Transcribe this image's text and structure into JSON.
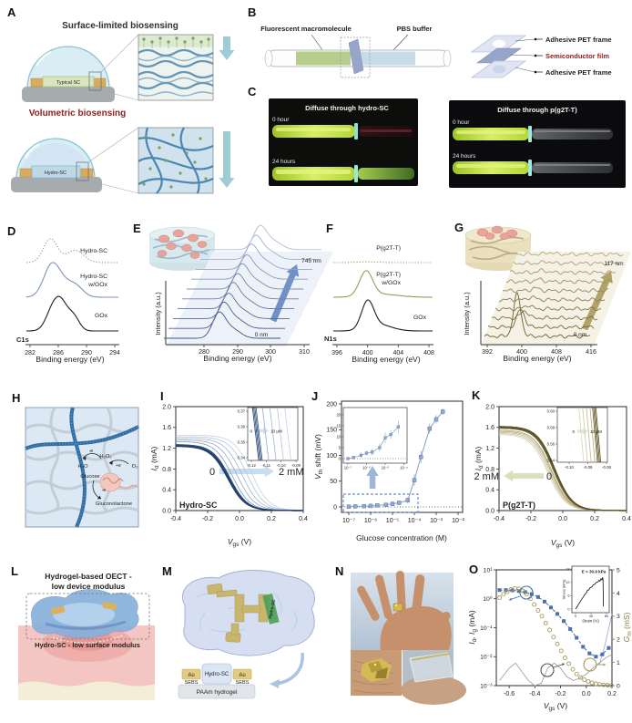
{
  "panels": {
    "A": {
      "label": "A",
      "title_top": "Surface-limited biosensing",
      "title_bottom": "Volumetric biosensing",
      "device_top": "Typical SC",
      "device_bottom": "Hydro-SC"
    },
    "B": {
      "label": "B",
      "macromolecule_label": "Fluorescent macromolecule",
      "buffer_label": "PBS buffer",
      "layers": [
        "Adhesive PET frame",
        "Semiconductor film",
        "Adhesive PET frame"
      ]
    },
    "C": {
      "label": "C",
      "title_left": "Diffuse through hydro-SC",
      "title_right": "Diffuse through p(g2T-T)",
      "time_0": "0 hour",
      "time_24": "24 hours"
    },
    "D": {
      "label": "D",
      "core_level": "C1s",
      "xlabel": "Binding energy (eV)"
    },
    "E": {
      "label": "E",
      "xlabel": "Binding energy (eV)",
      "ylabel": "Intensity (a.u.)"
    },
    "F": {
      "label": "F",
      "core_level": "N1s",
      "xlabel": "Binding energy (eV)"
    },
    "G": {
      "label": "G",
      "xlabel": "Binding energy (eV)",
      "ylabel": "Intensity (a.u.)"
    },
    "H": {
      "label": "H",
      "water": "H₂O",
      "peroxide": "H₂O₂",
      "oxygen": "O₂",
      "glucose": "Glucose",
      "gluconolactone": "Gluconolactone",
      "e_minus_1": "-e",
      "e_plus": "+e",
      "e_minus_2": "-e"
    },
    "I": {
      "label": "I"
    },
    "J": {
      "label": "J"
    },
    "K": {
      "label": "K"
    },
    "L": {
      "label": "L",
      "title_line1": "Hydrogel-based OECT -",
      "title_line2": "low device modulus",
      "surface_note": "Hydro-SC - low surface modulus"
    },
    "M": {
      "label": "M",
      "film_label": "Hydro-SC",
      "au_left": "Au",
      "au_right": "Au",
      "sebs_left": "SEBS",
      "sebs_right": "SEBS",
      "hydro_sc": "Hydro-SC",
      "substrate": "PAAm hydrogel"
    },
    "N": {
      "label": "N"
    },
    "O": {
      "label": "O"
    }
  },
  "axis_labels": {
    "vgs_main": "V",
    "vgs_sub": "gs",
    "vgs_unit": " (V)",
    "id_main": "I",
    "id_sub": "d",
    "id_unit": " (mA)",
    "vth_main": "V",
    "vth_sub": "th",
    "vth_unit": " shift (mV)",
    "gm_main": "G",
    "gm_sub": "m",
    "gm_unit": " (mS)",
    "idig_p1": "I",
    "idig_s1": "d",
    "idig_p2": ", I",
    "idig_s2": "g",
    "idig_p3": " (mA)"
  },
  "chart_data": [
    {
      "id": "D",
      "type": "line",
      "core_level": "C1s",
      "xlabel": "Binding energy (eV)",
      "xlim": [
        282,
        294
      ],
      "xticks": [
        282,
        286,
        290,
        294
      ],
      "xticklabels": [
        "282",
        "286",
        "290",
        "294"
      ],
      "series": [
        {
          "name": "Hydro-SC",
          "name_lines": [
            "Hydro-SC"
          ],
          "style": "dotted",
          "color": "#7e92b4",
          "peaks": [
            [
              284.9,
              1.0,
              1.0
            ],
            [
              288.4,
              1.2,
              0.52
            ]
          ]
        },
        {
          "name": "Hydro-SC w/GOx",
          "name_lines": [
            "Hydro-SC",
            "w/GOx"
          ],
          "style": "solid",
          "color": "#7e92b4",
          "peaks": [
            [
              285.0,
              1.1,
              1.0
            ],
            [
              286.6,
              1.6,
              0.55
            ],
            [
              288.6,
              1.0,
              0.25
            ]
          ]
        },
        {
          "name": "GOx",
          "name_lines": [
            "GOx"
          ],
          "style": "solid",
          "color": "#1c1c1c",
          "peaks": [
            [
              285.2,
              0.95,
              0.82
            ],
            [
              286.5,
              0.9,
              0.95
            ],
            [
              288.2,
              0.8,
              0.55
            ]
          ]
        }
      ]
    },
    {
      "id": "E",
      "type": "waterfall",
      "xlabel": "Binding energy (eV)",
      "ylabel": "Intensity (a.u.)",
      "xticks": [
        280,
        290,
        300,
        310
      ],
      "xticklabels": [
        "280",
        "290",
        "300",
        "310"
      ],
      "n_curves": 10,
      "depth_labels": [
        "0 nm",
        "745 nm"
      ],
      "peak_ev": 285.5,
      "heights": [
        26,
        26,
        25,
        26,
        25,
        25,
        24,
        25,
        24,
        24
      ]
    },
    {
      "id": "F",
      "type": "line",
      "core_level": "N1s",
      "xlabel": "Binding energy (eV)",
      "xlim": [
        396,
        408
      ],
      "xticks": [
        396,
        400,
        404,
        408
      ],
      "xticklabels": [
        "396",
        "400",
        "404",
        "408"
      ],
      "series": [
        {
          "name": "P(g2T-T)",
          "name_lines": [
            "P(g2T-T)"
          ],
          "style": "dotted",
          "color": "#a29659",
          "peaks": [
            [
              400,
              1.5,
              0.03
            ]
          ]
        },
        {
          "name": "P(g2T-T) w/GOx",
          "name_lines": [
            "P(g2T-T)",
            "w/GOx"
          ],
          "style": "solid",
          "color": "#a29659",
          "peaks": [
            [
              399.8,
              0.85,
              1.0
            ],
            [
              401.8,
              2.2,
              0.12
            ]
          ]
        },
        {
          "name": "GOx",
          "name_lines": [
            "GOx"
          ],
          "style": "solid",
          "color": "#1c1c1c",
          "peaks": [
            [
              400.0,
              0.8,
              1.0
            ],
            [
              401.6,
              1.6,
              0.22
            ]
          ]
        }
      ]
    },
    {
      "id": "G",
      "type": "waterfall",
      "xlabel": "Binding energy (eV)",
      "ylabel": "Intensity (a.u.)",
      "xticks": [
        392,
        400,
        408,
        416
      ],
      "xticklabels": [
        "392",
        "400",
        "408",
        "416"
      ],
      "n_curves": 10,
      "depth_labels": [
        "0 nm",
        "117 nm"
      ],
      "peak_ev": 399.5,
      "heights": [
        46,
        20,
        8,
        4,
        3,
        3,
        2.5,
        2.5,
        2,
        2
      ]
    },
    {
      "id": "I",
      "type": "transfer",
      "label": "Hydro-SC",
      "anno_left": "0",
      "anno_right": "2 mM",
      "xlim": [
        -0.4,
        0.4
      ],
      "ylim": [
        0,
        2
      ],
      "xticks": [
        -0.4,
        -0.2,
        0,
        0.2,
        0.4
      ],
      "xticklabels": [
        "-0.4",
        "-0.2",
        "0.0",
        "0.2",
        "0.4"
      ],
      "yticks": [
        0,
        0.4,
        0.8,
        1.2,
        1.6,
        2
      ],
      "yticklabels": [
        "0.0",
        "0.4",
        "0.8",
        "1.2",
        "1.6",
        "2.0"
      ],
      "imax": [
        1.45,
        1.42,
        1.39,
        1.36,
        1.33,
        1.27,
        1.26,
        1.25,
        1.24
      ],
      "vth": [
        0.075,
        0.045,
        0.015,
        -0.015,
        -0.045,
        -0.062,
        -0.066,
        -0.07,
        -0.074
      ],
      "inset": {
        "xticklabels": [
          "-0.12",
          "-0.11",
          "-0.10",
          "-0.09"
        ],
        "yticklabels": [
          "0.37",
          "0.36",
          "0.35",
          "0.34"
        ],
        "anno_from": "0",
        "anno_to": "10 μM",
        "half_span": 0.0021,
        "line_x": [
          -0.0955,
          -0.1005,
          -0.1055,
          -0.1105,
          -0.1148,
          -0.1156,
          -0.1164,
          -0.1172
        ]
      }
    },
    {
      "id": "J",
      "type": "scatter",
      "xlabel": "Glucose concentration (M)",
      "yticks": [
        0,
        50,
        100,
        150,
        200
      ],
      "yticklabels": [
        "0",
        "50",
        "100",
        "150",
        "200"
      ],
      "xticklabels": [
        "10⁻⁷",
        "10⁻⁶",
        "10⁻⁵",
        "10⁻⁴",
        "10⁻³",
        "10⁻²"
      ],
      "x": [
        1e-07,
        2e-07,
        5e-07,
        1e-06,
        2e-06,
        5e-06,
        1e-05,
        2e-05,
        5e-05,
        0.0001,
        0.0002,
        0.0005,
        0.001,
        0.002
      ],
      "y": [
        0.5,
        1,
        1.5,
        2,
        3,
        4,
        6,
        8,
        13,
        52,
        97,
        152,
        170,
        185
      ],
      "err": [
        0,
        0,
        0,
        0,
        0,
        0,
        2,
        2,
        3,
        6,
        6,
        5,
        4,
        3
      ],
      "inset": {
        "yticks": [
          0,
          5,
          10,
          15,
          20
        ],
        "yticklabels": [
          "0",
          "5",
          "10",
          "15",
          "20"
        ],
        "xticklabels": [
          "10⁻⁷",
          "10⁻⁶",
          "10⁻⁵",
          "10⁻⁴"
        ],
        "x": [
          1e-07,
          2e-07,
          5e-07,
          1e-06,
          2e-06,
          5e-06,
          1e-05,
          2e-05,
          5e-05
        ],
        "y": [
          0,
          0.5,
          1.5,
          2.5,
          3,
          5,
          9.5,
          11,
          14.5
        ],
        "err": [
          0.4,
          0.8,
          1.2,
          1,
          1.4,
          1.8,
          2.4,
          2,
          3
        ]
      }
    },
    {
      "id": "K",
      "type": "transfer",
      "label": "P(g2T-T)",
      "anno_left": "2 mM",
      "anno_right": "0",
      "xlim": [
        -0.4,
        0.4
      ],
      "ylim": [
        0,
        2
      ],
      "xticks": [
        -0.4,
        -0.2,
        0,
        0.2,
        0.4
      ],
      "xticklabels": [
        "-0.4",
        "-0.2",
        "0.0",
        "0.2",
        "0.4"
      ],
      "yticks": [
        0,
        0.4,
        0.8,
        1.2,
        1.6,
        2
      ],
      "yticklabels": [
        "0.0",
        "0.4",
        "0.8",
        "1.2",
        "1.6",
        "2.0"
      ],
      "imax": [
        1.47,
        1.49,
        1.51,
        1.53,
        1.55,
        1.59,
        1.6,
        1.61,
        1.62
      ],
      "vth": [
        -0.095,
        -0.088,
        -0.081,
        -0.075,
        -0.07,
        -0.06,
        -0.057,
        -0.054,
        -0.051
      ],
      "inset": {
        "xticklabels": [
          "-0.10",
          "-0.09",
          "-0.08"
        ],
        "yticklabels": [
          "0.60",
          "0.58",
          "0.56",
          "0.54"
        ],
        "anno_from": "0",
        "anno_to": "10 μM",
        "half_span": 0.0013,
        "line_x": [
          -0.0935,
          -0.0915,
          -0.0895,
          -0.0875,
          -0.0862,
          -0.0856,
          -0.085,
          -0.0844
        ]
      }
    },
    {
      "id": "O",
      "type": "dual",
      "xticks": [
        -0.6,
        -0.4,
        -0.2,
        0,
        0.2
      ],
      "xticklabels": [
        "-0.6",
        "-0.4",
        "-0.2",
        "0.0",
        "0.2"
      ],
      "yticklabels_left": [
        "10¹",
        "10⁰",
        "10⁻¹",
        "10⁻²",
        "10⁻³"
      ],
      "yticklabels_right": [
        "5",
        "4",
        "3",
        "2",
        "1",
        "0"
      ],
      "id_x": [
        -0.675,
        -0.625,
        -0.575,
        -0.525,
        -0.475,
        -0.425,
        -0.375,
        -0.325,
        -0.275,
        -0.225,
        -0.175,
        -0.125,
        -0.075,
        -0.025,
        0.025,
        0.075,
        0.125,
        0.175
      ],
      "id_y": [
        2.0,
        2.0,
        1.95,
        1.85,
        1.7,
        1.45,
        1.15,
        0.8,
        0.5,
        0.3,
        0.17,
        0.09,
        0.045,
        0.022,
        0.013,
        0.01,
        0.012,
        0.02
      ],
      "gm_x": [
        -0.675,
        -0.645,
        -0.615,
        -0.585,
        -0.555,
        -0.525,
        -0.495,
        -0.465,
        -0.435,
        -0.405,
        -0.375,
        -0.345,
        -0.315,
        -0.285,
        -0.255,
        -0.225,
        -0.195,
        -0.165,
        -0.135,
        -0.105,
        -0.075,
        -0.045,
        -0.015,
        0.015,
        0.045,
        0.075,
        0.105,
        0.135,
        0.165,
        0.195
      ],
      "gm_y": [
        3.8,
        3.95,
        4.05,
        4.15,
        4.2,
        4.18,
        4.1,
        3.95,
        3.75,
        3.5,
        3.25,
        3.0,
        2.7,
        2.4,
        2.1,
        1.8,
        1.5,
        1.2,
        0.95,
        0.7,
        0.5,
        0.35,
        0.25,
        0.18,
        0.12,
        0.08,
        0.05,
        0.03,
        0.02,
        0.01
      ],
      "ig_x": [
        -0.675,
        -0.6,
        -0.55,
        -0.5,
        -0.45,
        -0.4,
        -0.35,
        -0.3,
        -0.25,
        -0.2,
        -0.15,
        -0.1,
        -0.05,
        0,
        0.05,
        0.1,
        0.15,
        0.2
      ],
      "ig_y": [
        0.0015,
        0.004,
        0.006,
        0.003,
        0.0015,
        0.001,
        0.0012,
        0.004,
        0.006,
        0.004,
        0.002,
        0.0015,
        0.0018,
        0.0025,
        0.004,
        0.006,
        0.009,
        0.012
      ],
      "leak_x": [
        0.1,
        0.14,
        0.18,
        0.2
      ],
      "leak_y": [
        0.005,
        0.02,
        0.12,
        0.3
      ],
      "inset": {
        "anno": "E = 30.9 kPa",
        "xlabel": "Strain (%)",
        "ylabel": "Stress (kPa)",
        "xticks": [
          0,
          40,
          80
        ],
        "xticklabels": [
          "0",
          "40",
          "80"
        ],
        "yticks": [
          0,
          6,
          12,
          18
        ],
        "yticklabels": [
          "0",
          "6",
          "12",
          "18"
        ],
        "x": [
          0,
          4,
          8,
          12,
          16,
          20,
          24,
          28,
          30,
          34,
          38,
          42,
          46,
          50,
          54,
          58,
          60,
          63,
          66,
          68,
          70,
          71,
          72
        ],
        "y": [
          0,
          1,
          2.2,
          3.2,
          4.4,
          5.4,
          6.6,
          7.2,
          8.3,
          8.6,
          9.6,
          9.9,
          10.8,
          11.2,
          12,
          12.2,
          12.9,
          12.5,
          13.6,
          13.1,
          14.2,
          13,
          1.2
        ]
      }
    }
  ]
}
